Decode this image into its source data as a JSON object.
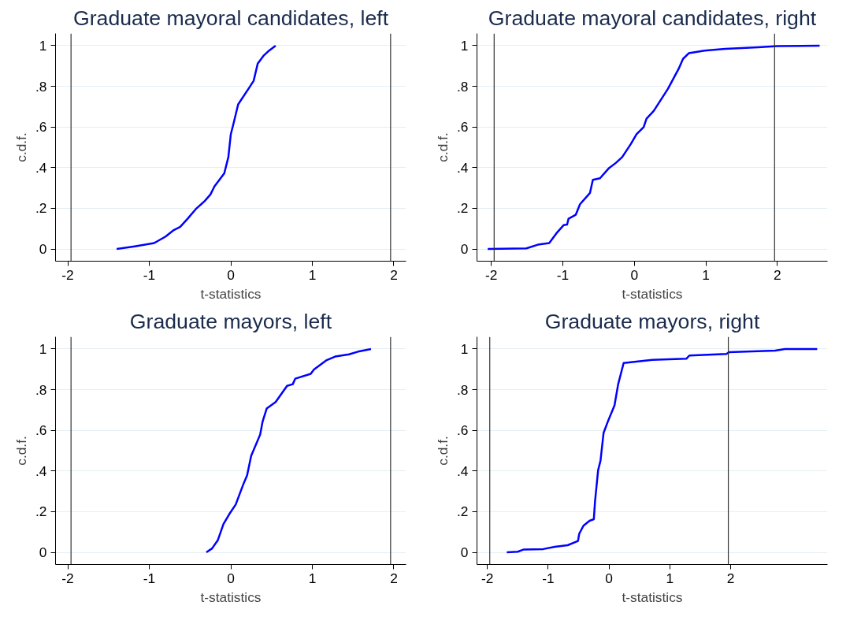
{
  "chart_data": [
    {
      "type": "line",
      "title": "Graduate mayoral candidates, left",
      "xlabel": "t-statistics",
      "ylabel": "c.d.f.",
      "xlim": [
        -2.15,
        2.15
      ],
      "xticks": [
        -2,
        -1,
        0,
        1,
        2
      ],
      "ylim": [
        -0.06,
        1.06
      ],
      "yticks": [
        0,
        {
          "value": 0.2,
          "label": ".2"
        },
        {
          "value": 0.4,
          "label": ".4"
        },
        {
          "value": 0.6,
          "label": ".6"
        },
        {
          "value": 0.8,
          "label": ".8"
        },
        1
      ],
      "grid": "y",
      "ref_lines": [
        {
          "axis": "x",
          "value": -1.96,
          "color": "#333333"
        },
        {
          "axis": "x",
          "value": 1.96,
          "color": "#333333"
        }
      ],
      "series": [
        {
          "color": "#0000ff",
          "x": [
            -1.4,
            -1.18,
            -0.94,
            -0.8,
            -0.7,
            -0.62,
            -0.53,
            -0.43,
            -0.32,
            -0.25,
            -0.2,
            -0.08,
            -0.03,
            0.0,
            0.04,
            0.09,
            0.23,
            0.28,
            0.33,
            0.4,
            0.47,
            0.55
          ],
          "values": [
            0,
            0.013,
            0.029,
            0.061,
            0.093,
            0.109,
            0.149,
            0.196,
            0.236,
            0.268,
            0.308,
            0.372,
            0.452,
            0.564,
            0.628,
            0.711,
            0.796,
            0.827,
            0.912,
            0.95,
            0.976,
            1.0
          ]
        }
      ]
    },
    {
      "type": "line",
      "title": "Graduate mayoral candidates, right",
      "xlabel": "t-statistics",
      "ylabel": "c.d.f.",
      "xlim": [
        -2.2,
        2.7
      ],
      "xticks": [
        -2,
        -1,
        0,
        1,
        2
      ],
      "ylim": [
        -0.06,
        1.06
      ],
      "yticks": [
        0,
        {
          "value": 0.2,
          "label": ".2"
        },
        {
          "value": 0.4,
          "label": ".4"
        },
        {
          "value": 0.6,
          "label": ".6"
        },
        {
          "value": 0.8,
          "label": ".8"
        },
        1
      ],
      "grid": "y",
      "ref_lines": [
        {
          "axis": "x",
          "value": -1.96,
          "color": "#333333"
        },
        {
          "axis": "x",
          "value": 1.96,
          "color": "#333333"
        }
      ],
      "series": [
        {
          "color": "#0000ff",
          "x": [
            -2.05,
            -1.51,
            -1.35,
            -1.19,
            -1.09,
            -0.99,
            -0.94,
            -0.92,
            -0.82,
            -0.76,
            -0.62,
            -0.58,
            -0.48,
            -0.36,
            -0.26,
            -0.17,
            -0.05,
            0.03,
            0.13,
            0.17,
            0.27,
            0.47,
            0.62,
            0.68,
            0.76,
            0.98,
            1.27,
            1.73,
            2.0,
            2.59
          ],
          "values": [
            0,
            0.003,
            0.021,
            0.029,
            0.077,
            0.117,
            0.12,
            0.149,
            0.168,
            0.22,
            0.276,
            0.34,
            0.348,
            0.396,
            0.423,
            0.452,
            0.516,
            0.564,
            0.599,
            0.641,
            0.679,
            0.788,
            0.887,
            0.935,
            0.963,
            0.976,
            0.984,
            0.992,
            0.998,
            1.0
          ]
        }
      ]
    },
    {
      "type": "line",
      "title": "Graduate mayors, left",
      "xlabel": "t-statistics",
      "ylabel": "c.d.f.",
      "xlim": [
        -2.15,
        2.15
      ],
      "xticks": [
        -2,
        -1,
        0,
        1,
        2
      ],
      "ylim": [
        -0.06,
        1.06
      ],
      "yticks": [
        0,
        {
          "value": 0.2,
          "label": ".2"
        },
        {
          "value": 0.4,
          "label": ".4"
        },
        {
          "value": 0.6,
          "label": ".6"
        },
        {
          "value": 0.8,
          "label": ".8"
        },
        1
      ],
      "grid": "y",
      "ref_lines": [
        {
          "axis": "x",
          "value": -1.96,
          "color": "#333333"
        },
        {
          "axis": "x",
          "value": 1.96,
          "color": "#333333"
        }
      ],
      "series": [
        {
          "color": "#0000ff",
          "x": [
            -0.3,
            -0.23,
            -0.16,
            -0.09,
            -0.02,
            0.06,
            0.15,
            0.2,
            0.25,
            0.36,
            0.39,
            0.44,
            0.55,
            0.69,
            0.76,
            0.79,
            0.98,
            1.02,
            1.17,
            1.28,
            1.45,
            1.56,
            1.72
          ],
          "values": [
            0,
            0.019,
            0.059,
            0.139,
            0.187,
            0.235,
            0.331,
            0.379,
            0.475,
            0.579,
            0.643,
            0.707,
            0.739,
            0.819,
            0.827,
            0.854,
            0.878,
            0.899,
            0.944,
            0.963,
            0.974,
            0.987,
            1.0
          ]
        }
      ]
    },
    {
      "type": "line",
      "title": "Graduate mayors, right",
      "xlabel": "t-statistics",
      "ylabel": "c.d.f.",
      "xlim": [
        -2.17,
        3.59
      ],
      "xticks": [
        -2,
        -1,
        0,
        1,
        2
      ],
      "ylim": [
        -0.06,
        1.06
      ],
      "yticks": [
        0,
        {
          "value": 0.2,
          "label": ".2"
        },
        {
          "value": 0.4,
          "label": ".4"
        },
        {
          "value": 0.6,
          "label": ".6"
        },
        {
          "value": 0.8,
          "label": ".8"
        },
        1
      ],
      "grid": "y",
      "ref_lines": [
        {
          "axis": "x",
          "value": -1.96,
          "color": "#333333"
        },
        {
          "axis": "x",
          "value": 1.96,
          "color": "#333333"
        }
      ],
      "series": [
        {
          "color": "#0000ff",
          "x": [
            -1.68,
            -1.5,
            -1.4,
            -1.08,
            -0.89,
            -0.68,
            -0.51,
            -0.49,
            -0.42,
            -0.32,
            -0.25,
            -0.23,
            -0.18,
            -0.14,
            -0.09,
            -0.02,
            0.09,
            0.15,
            0.24,
            0.71,
            1.27,
            1.32,
            1.93,
            1.97,
            2.73,
            2.89,
            3.42
          ],
          "values": [
            0,
            0.003,
            0.014,
            0.016,
            0.027,
            0.035,
            0.056,
            0.091,
            0.131,
            0.155,
            0.163,
            0.251,
            0.403,
            0.451,
            0.587,
            0.643,
            0.723,
            0.827,
            0.931,
            0.947,
            0.952,
            0.968,
            0.976,
            0.984,
            0.992,
            1.0,
            1.0
          ]
        }
      ]
    }
  ]
}
